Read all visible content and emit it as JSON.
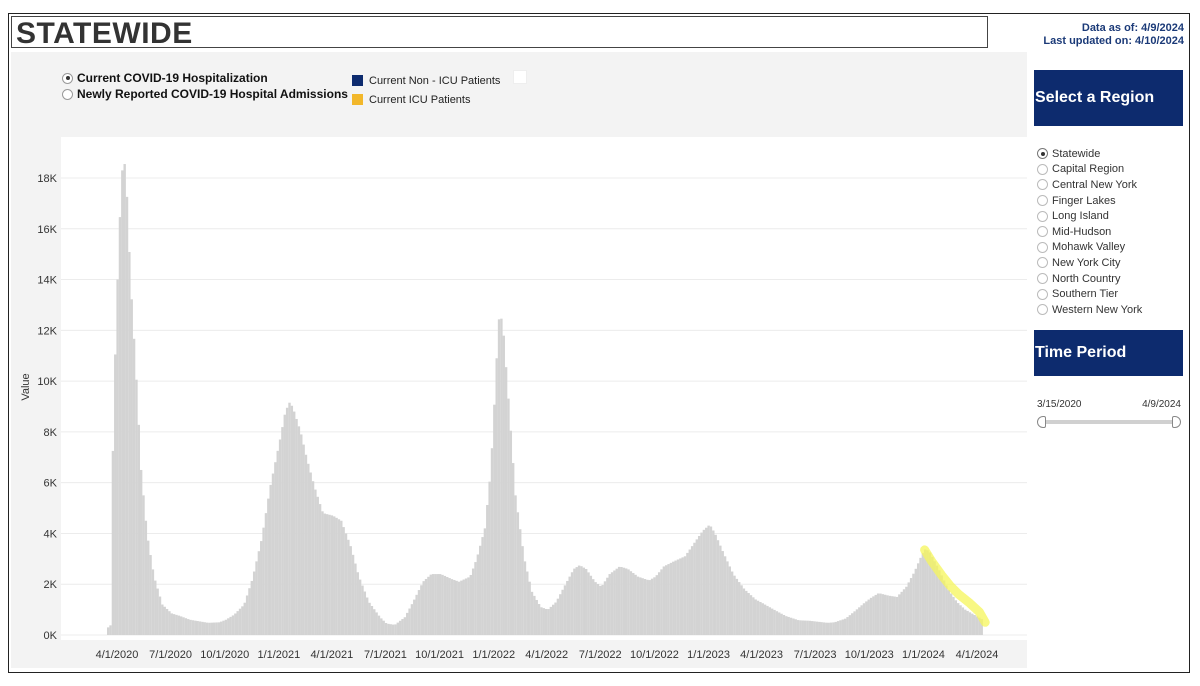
{
  "header": {
    "title": "STATEWIDE",
    "data_as_of": "Data as of: 4/9/2024",
    "last_updated": "Last updated on: 4/10/2024"
  },
  "metric_options": [
    {
      "label": "Current COVID-19 Hospitalization",
      "selected": true
    },
    {
      "label": "Newly Reported COVID-19 Hospital Admissions",
      "selected": false
    }
  ],
  "legend": [
    {
      "label": "Current Non - ICU Patients",
      "color": "#0d2b6e"
    },
    {
      "label": "Current ICU Patients",
      "color": "#f2b72a"
    }
  ],
  "sidebar": {
    "region_title": "Select a Region",
    "regions": [
      {
        "label": "Statewide",
        "selected": true
      },
      {
        "label": "Capital Region",
        "selected": false
      },
      {
        "label": "Central New York",
        "selected": false
      },
      {
        "label": "Finger Lakes",
        "selected": false
      },
      {
        "label": "Long Island",
        "selected": false
      },
      {
        "label": "Mid-Hudson",
        "selected": false
      },
      {
        "label": "Mohawk Valley",
        "selected": false
      },
      {
        "label": "New York City",
        "selected": false
      },
      {
        "label": "North Country",
        "selected": false
      },
      {
        "label": "Southern Tier",
        "selected": false
      },
      {
        "label": "Western New York",
        "selected": false
      }
    ],
    "time_title": "Time Period",
    "time_start": "3/15/2020",
    "time_end": "4/9/2024"
  },
  "chart_data": {
    "type": "area",
    "ylabel": "Value",
    "xlabel": "",
    "ylim": [
      0,
      19000
    ],
    "grid": true,
    "bar_color": "#d3d3d3",
    "highlight_color": "#f5f55a",
    "y_ticks": [
      {
        "value": 0,
        "label": "0K"
      },
      {
        "value": 2000,
        "label": "2K"
      },
      {
        "value": 4000,
        "label": "4K"
      },
      {
        "value": 6000,
        "label": "6K"
      },
      {
        "value": 8000,
        "label": "8K"
      },
      {
        "value": 10000,
        "label": "10K"
      },
      {
        "value": 12000,
        "label": "12K"
      },
      {
        "value": 14000,
        "label": "14K"
      },
      {
        "value": 16000,
        "label": "16K"
      },
      {
        "value": 18000,
        "label": "18K"
      }
    ],
    "x_ticks": [
      {
        "date": "2020-04-01",
        "label": "4/1/2020"
      },
      {
        "date": "2020-07-01",
        "label": "7/1/2020"
      },
      {
        "date": "2020-10-01",
        "label": "10/1/2020"
      },
      {
        "date": "2021-01-01",
        "label": "1/1/2021"
      },
      {
        "date": "2021-04-01",
        "label": "4/1/2021"
      },
      {
        "date": "2021-07-01",
        "label": "7/1/2021"
      },
      {
        "date": "2021-10-01",
        "label": "10/1/2021"
      },
      {
        "date": "2022-01-01",
        "label": "1/1/2022"
      },
      {
        "date": "2022-04-01",
        "label": "4/1/2022"
      },
      {
        "date": "2022-07-01",
        "label": "7/1/2022"
      },
      {
        "date": "2022-10-01",
        "label": "10/1/2022"
      },
      {
        "date": "2023-01-01",
        "label": "1/1/2023"
      },
      {
        "date": "2023-04-01",
        "label": "4/1/2023"
      },
      {
        "date": "2023-07-01",
        "label": "7/1/2023"
      },
      {
        "date": "2023-10-01",
        "label": "10/1/2023"
      },
      {
        "date": "2024-01-01",
        "label": "1/1/2024"
      },
      {
        "date": "2024-04-01",
        "label": "4/1/2024"
      }
    ],
    "series": [
      {
        "name": "Current COVID-19 Hospitalization",
        "points": [
          [
            "2020-03-15",
            300
          ],
          [
            "2020-03-20",
            400
          ],
          [
            "2020-03-22",
            6300
          ],
          [
            "2020-03-28",
            12000
          ],
          [
            "2020-04-03",
            16000
          ],
          [
            "2020-04-08",
            18300
          ],
          [
            "2020-04-11",
            18800
          ],
          [
            "2020-04-15",
            17800
          ],
          [
            "2020-04-22",
            14000
          ],
          [
            "2020-05-01",
            10500
          ],
          [
            "2020-05-10",
            6500
          ],
          [
            "2020-05-20",
            4000
          ],
          [
            "2020-06-01",
            2300
          ],
          [
            "2020-06-15",
            1200
          ],
          [
            "2020-07-01",
            850
          ],
          [
            "2020-07-15",
            750
          ],
          [
            "2020-08-01",
            600
          ],
          [
            "2020-09-01",
            480
          ],
          [
            "2020-09-20",
            500
          ],
          [
            "2020-10-01",
            600
          ],
          [
            "2020-10-15",
            800
          ],
          [
            "2020-11-01",
            1200
          ],
          [
            "2020-11-15",
            2200
          ],
          [
            "2020-12-01",
            3800
          ],
          [
            "2020-12-15",
            5800
          ],
          [
            "2021-01-01",
            7700
          ],
          [
            "2021-01-10",
            8800
          ],
          [
            "2021-01-18",
            9200
          ],
          [
            "2021-01-25",
            8800
          ],
          [
            "2021-02-05",
            8000
          ],
          [
            "2021-02-15",
            7000
          ],
          [
            "2021-03-01",
            5800
          ],
          [
            "2021-03-15",
            4800
          ],
          [
            "2021-04-01",
            4700
          ],
          [
            "2021-04-15",
            4500
          ],
          [
            "2021-05-01",
            3500
          ],
          [
            "2021-05-15",
            2300
          ],
          [
            "2021-06-01",
            1300
          ],
          [
            "2021-06-20",
            700
          ],
          [
            "2021-07-01",
            450
          ],
          [
            "2021-07-15",
            400
          ],
          [
            "2021-08-01",
            700
          ],
          [
            "2021-08-15",
            1300
          ],
          [
            "2021-09-01",
            2100
          ],
          [
            "2021-09-15",
            2400
          ],
          [
            "2021-10-01",
            2400
          ],
          [
            "2021-10-20",
            2200
          ],
          [
            "2021-11-01",
            2100
          ],
          [
            "2021-11-20",
            2300
          ],
          [
            "2021-12-01",
            3000
          ],
          [
            "2021-12-15",
            4200
          ],
          [
            "2021-12-25",
            6500
          ],
          [
            "2022-01-01",
            9500
          ],
          [
            "2022-01-07",
            12300
          ],
          [
            "2022-01-10",
            12700
          ],
          [
            "2022-01-15",
            12100
          ],
          [
            "2022-01-25",
            9000
          ],
          [
            "2022-02-05",
            5500
          ],
          [
            "2022-02-20",
            3000
          ],
          [
            "2022-03-05",
            1700
          ],
          [
            "2022-03-20",
            1100
          ],
          [
            "2022-04-01",
            1000
          ],
          [
            "2022-04-15",
            1300
          ],
          [
            "2022-05-01",
            2000
          ],
          [
            "2022-05-15",
            2600
          ],
          [
            "2022-05-25",
            2750
          ],
          [
            "2022-06-05",
            2600
          ],
          [
            "2022-06-20",
            2100
          ],
          [
            "2022-07-01",
            1900
          ],
          [
            "2022-07-15",
            2400
          ],
          [
            "2022-08-01",
            2700
          ],
          [
            "2022-08-15",
            2600
          ],
          [
            "2022-09-01",
            2300
          ],
          [
            "2022-09-20",
            2150
          ],
          [
            "2022-10-01",
            2300
          ],
          [
            "2022-10-15",
            2700
          ],
          [
            "2022-11-01",
            2900
          ],
          [
            "2022-11-20",
            3100
          ],
          [
            "2022-12-05",
            3600
          ],
          [
            "2022-12-20",
            4100
          ],
          [
            "2023-01-01",
            4350
          ],
          [
            "2023-01-10",
            4000
          ],
          [
            "2023-01-25",
            3200
          ],
          [
            "2023-02-10",
            2400
          ],
          [
            "2023-03-01",
            1800
          ],
          [
            "2023-03-20",
            1400
          ],
          [
            "2023-04-01",
            1250
          ],
          [
            "2023-04-20",
            1000
          ],
          [
            "2023-05-10",
            750
          ],
          [
            "2023-06-01",
            580
          ],
          [
            "2023-06-20",
            560
          ],
          [
            "2023-07-01",
            530
          ],
          [
            "2023-07-20",
            480
          ],
          [
            "2023-08-01",
            500
          ],
          [
            "2023-08-20",
            650
          ],
          [
            "2023-09-05",
            950
          ],
          [
            "2023-09-20",
            1250
          ],
          [
            "2023-10-01",
            1450
          ],
          [
            "2023-10-15",
            1650
          ],
          [
            "2023-11-01",
            1550
          ],
          [
            "2023-11-15",
            1500
          ],
          [
            "2023-12-01",
            1900
          ],
          [
            "2023-12-15",
            2500
          ],
          [
            "2023-12-28",
            3200
          ],
          [
            "2024-01-03",
            3400
          ],
          [
            "2024-01-10",
            3250
          ],
          [
            "2024-01-25",
            2600
          ],
          [
            "2024-02-10",
            1800
          ],
          [
            "2024-02-25",
            1300
          ],
          [
            "2024-03-10",
            1000
          ],
          [
            "2024-03-25",
            800
          ],
          [
            "2024-04-09",
            600
          ]
        ]
      },
      {
        "name": "Highlighted recent trend",
        "points": [
          [
            "2024-01-03",
            3350
          ],
          [
            "2024-01-15",
            2900
          ],
          [
            "2024-02-01",
            2350
          ],
          [
            "2024-02-15",
            1950
          ],
          [
            "2024-03-01",
            1600
          ],
          [
            "2024-03-20",
            1250
          ],
          [
            "2024-04-05",
            900
          ],
          [
            "2024-04-15",
            500
          ]
        ]
      }
    ]
  }
}
